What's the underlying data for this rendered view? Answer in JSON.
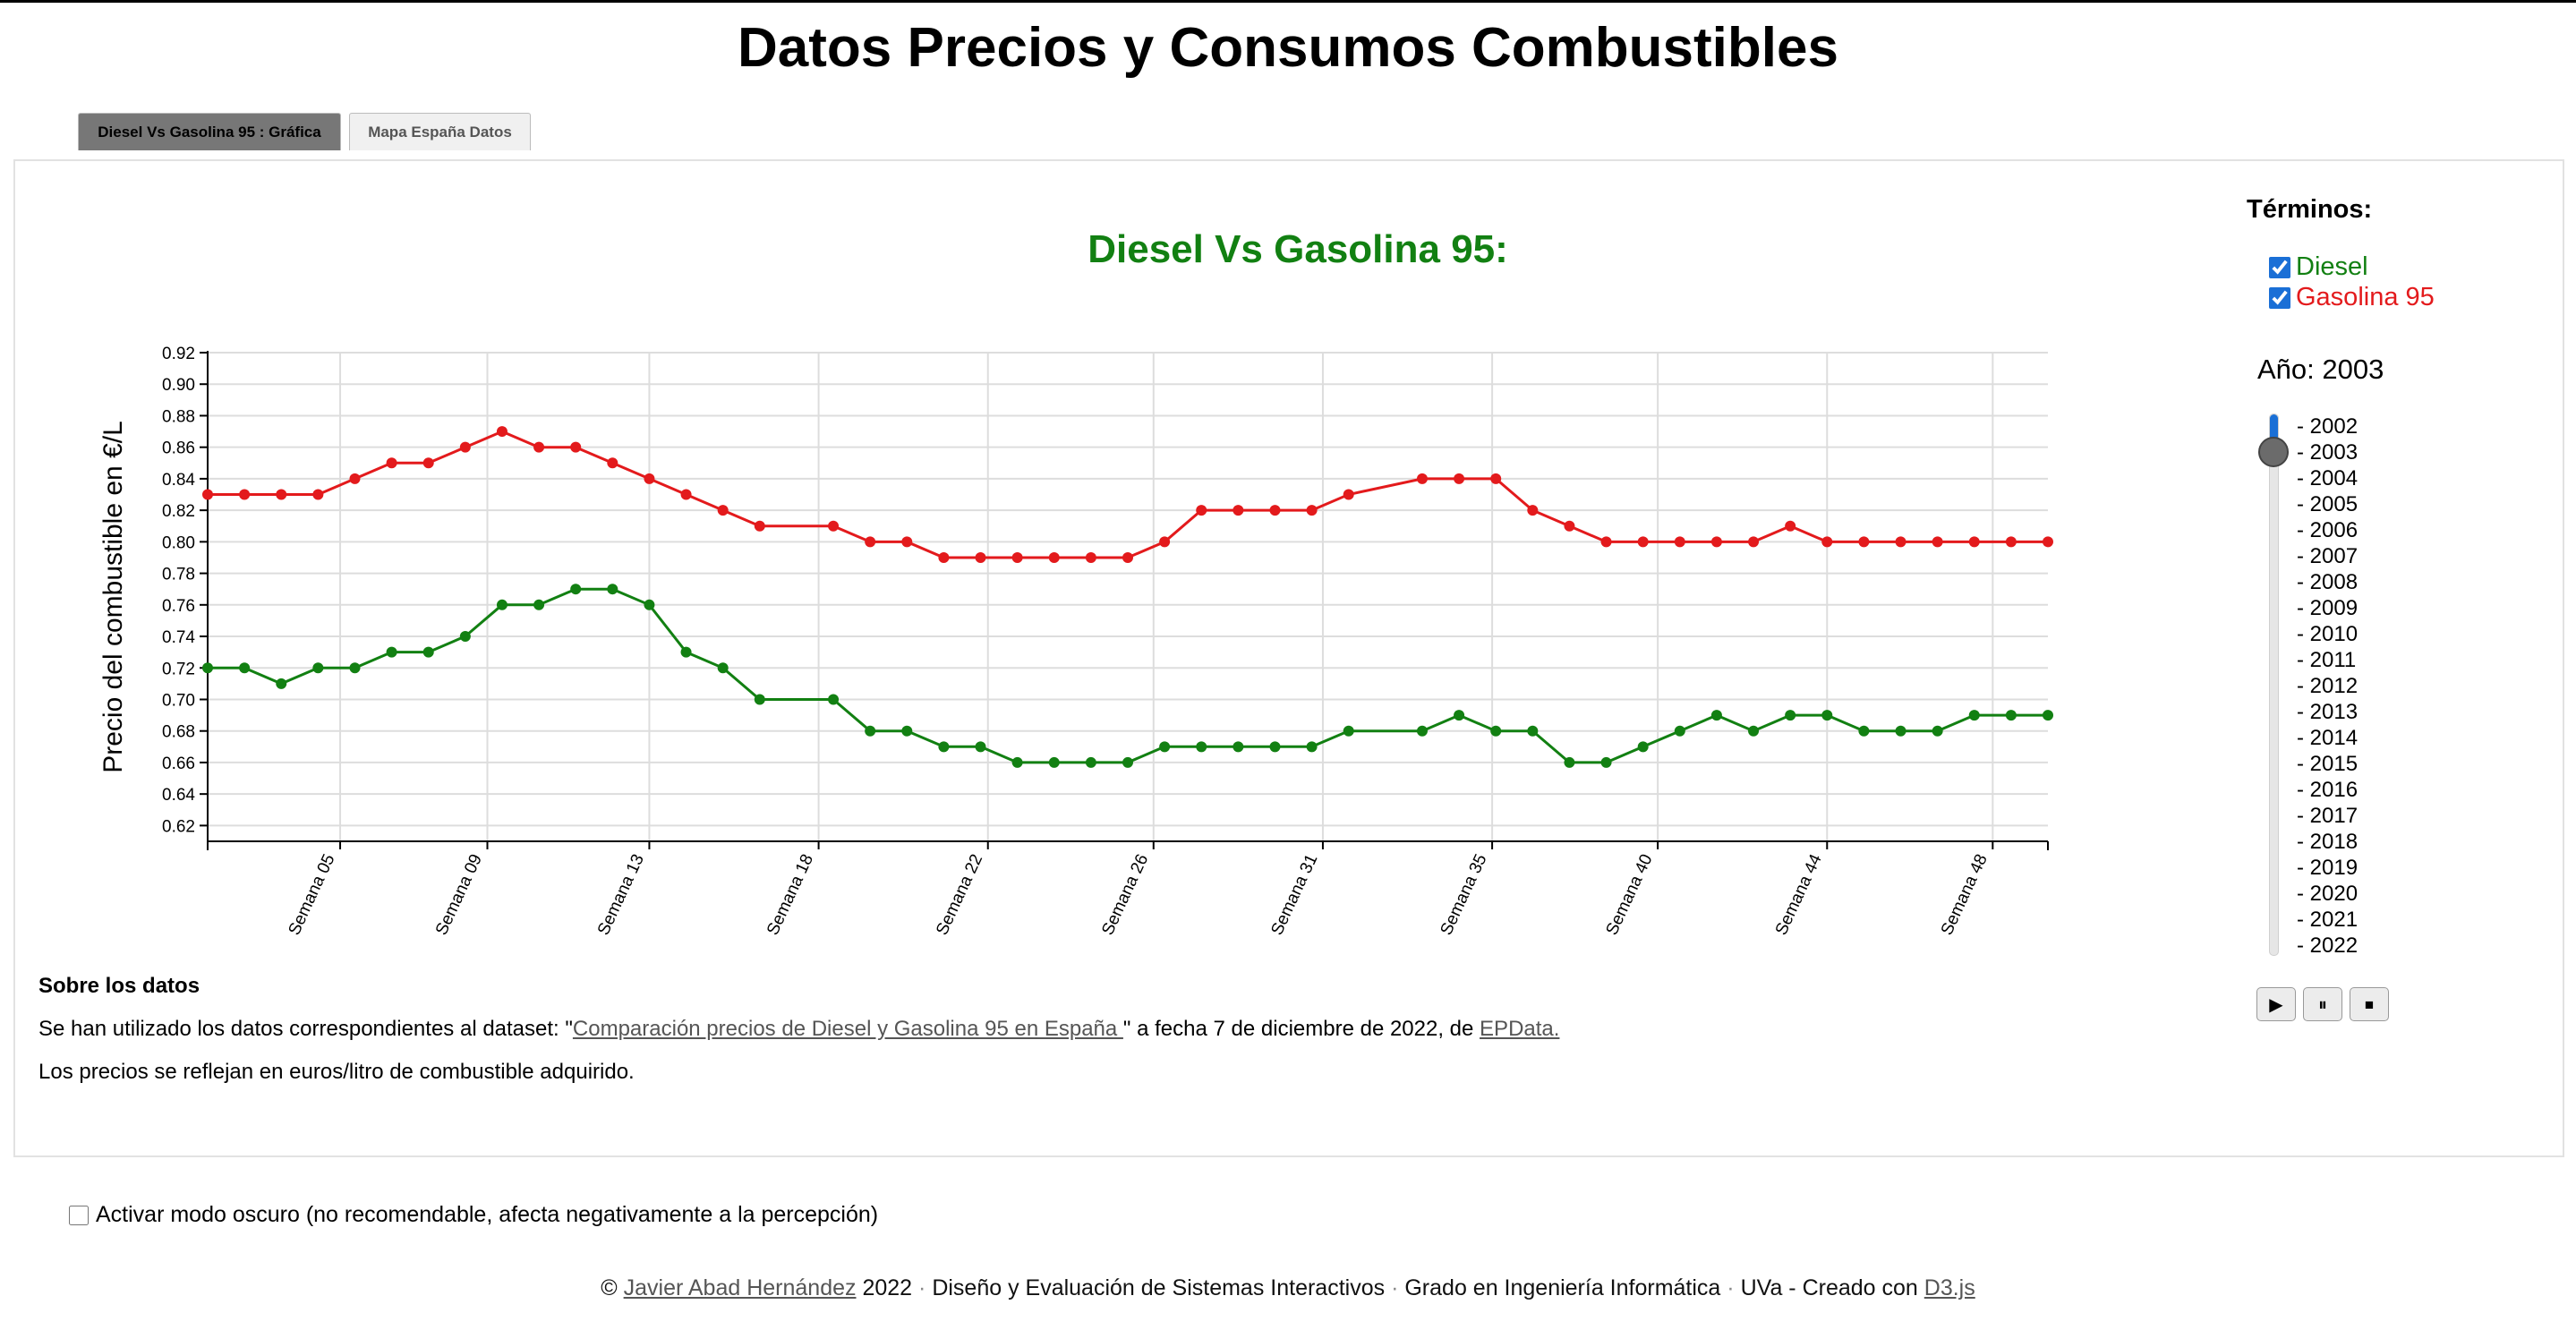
{
  "page": {
    "title": "Datos Precios y Consumos Combustibles",
    "tabs": [
      {
        "label": "Diesel Vs Gasolina 95 : Gráfica",
        "active": true
      },
      {
        "label": "Mapa España Datos",
        "active": false
      }
    ]
  },
  "sidebar": {
    "terms_title": "Términos:",
    "terms": [
      {
        "label": "Diesel",
        "checked": true,
        "color": "#128012"
      },
      {
        "label": "Gasolina 95",
        "checked": true,
        "color": "#e31a1c"
      }
    ],
    "year_label": "Año: 2003",
    "selected_year": "2003",
    "years": [
      "- 2002",
      "- 2003",
      "- 2004",
      "- 2005",
      "- 2006",
      "- 2007",
      "- 2008",
      "- 2009",
      "- 2010",
      "- 2011",
      "- 2012",
      "- 2013",
      "- 2014",
      "- 2015",
      "- 2016",
      "- 2017",
      "- 2018",
      "- 2019",
      "- 2020",
      "- 2021",
      "- 2022"
    ],
    "controls": [
      {
        "name": "play-button",
        "icon": "play-icon",
        "glyph": "▶"
      },
      {
        "name": "pause-button",
        "icon": "pause-icon",
        "glyph": "⏸"
      },
      {
        "name": "stop-button",
        "icon": "stop-icon",
        "glyph": "⏹"
      }
    ]
  },
  "about": {
    "title": "Sobre los datos",
    "line1_before": "Se han utilizado los datos correspondientes al dataset: \"",
    "dataset_link": "Comparación precios de Diesel y Gasolina 95 en España ",
    "line1_middle": "\" a fecha 7 de diciembre de 2022, de ",
    "source_link": "EPData.",
    "line2": "Los precios se reflejan en euros/litro de combustible adquirido."
  },
  "dark_mode": {
    "label": "Activar modo oscuro (no recomendable, afecta negativamente a la percepción)",
    "checked": false
  },
  "footer": {
    "copyright": "©",
    "author": "Javier Abad Hernández",
    "year": "2022",
    "sep": "·",
    "course": "Diseño y Evaluación de Sistemas Interactivos",
    "degree": "Grado en Ingeniería Informática",
    "uni": "UVa - Creado con",
    "lib": "D3.js"
  },
  "chart_data": {
    "type": "line",
    "title": "Diesel Vs Gasolina 95:",
    "title_color": "#128012",
    "ylabel": "Precio del combustible en €/L",
    "xlabel": "",
    "ylim": [
      0.61,
      0.92
    ],
    "yticks": [
      0.62,
      0.64,
      0.66,
      0.68,
      0.7,
      0.72,
      0.74,
      0.76,
      0.78,
      0.8,
      0.82,
      0.84,
      0.86,
      0.88,
      0.9,
      0.92
    ],
    "x": [
      1,
      2,
      3,
      4,
      5,
      6,
      7,
      8,
      9,
      10,
      11,
      12,
      13,
      14,
      15,
      16,
      18,
      19,
      20,
      21,
      22,
      23,
      24,
      25,
      26,
      27,
      28,
      29,
      30,
      31,
      32,
      34,
      35,
      36,
      37,
      38,
      39,
      40,
      41,
      42,
      43,
      44,
      45,
      46,
      47,
      48,
      49,
      50,
      51
    ],
    "xlim": [
      1,
      51
    ],
    "xticks": [
      {
        "x": 4.6,
        "label": "Semana 05"
      },
      {
        "x": 8.6,
        "label": "Semana 09"
      },
      {
        "x": 13.0,
        "label": "Semana 13"
      },
      {
        "x": 17.6,
        "label": "Semana 18"
      },
      {
        "x": 22.2,
        "label": "Semana 22"
      },
      {
        "x": 26.7,
        "label": "Semana 26"
      },
      {
        "x": 31.3,
        "label": "Semana 31"
      },
      {
        "x": 35.9,
        "label": "Semana 35"
      },
      {
        "x": 40.4,
        "label": "Semana 40"
      },
      {
        "x": 45.0,
        "label": "Semana 44"
      },
      {
        "x": 49.5,
        "label": "Semana 48"
      }
    ],
    "grid": true,
    "series": [
      {
        "name": "Gasolina 95",
        "color": "#e31a1c",
        "values": [
          0.83,
          0.83,
          0.83,
          0.83,
          0.84,
          0.85,
          0.85,
          0.86,
          0.87,
          0.86,
          0.86,
          0.85,
          0.84,
          0.83,
          0.82,
          0.81,
          0.81,
          0.8,
          0.8,
          0.79,
          0.79,
          0.79,
          0.79,
          0.79,
          0.79,
          0.8,
          0.82,
          0.82,
          0.82,
          0.82,
          0.83,
          0.84,
          0.84,
          0.84,
          0.82,
          0.81,
          0.8,
          0.8,
          0.8,
          0.8,
          0.8,
          0.81,
          0.8,
          0.8,
          0.8,
          0.8,
          0.8,
          0.8,
          0.8
        ]
      },
      {
        "name": "Diesel",
        "color": "#128012",
        "values": [
          0.72,
          0.72,
          0.71,
          0.72,
          0.72,
          0.73,
          0.73,
          0.74,
          0.76,
          0.76,
          0.77,
          0.77,
          0.76,
          0.73,
          0.72,
          0.7,
          0.7,
          0.68,
          0.68,
          0.67,
          0.67,
          0.66,
          0.66,
          0.66,
          0.66,
          0.67,
          0.67,
          0.67,
          0.67,
          0.67,
          0.68,
          0.68,
          0.69,
          0.68,
          0.68,
          0.66,
          0.66,
          0.67,
          0.68,
          0.69,
          0.68,
          0.69,
          0.69,
          0.68,
          0.68,
          0.68,
          0.69,
          0.69,
          0.69
        ]
      }
    ]
  }
}
